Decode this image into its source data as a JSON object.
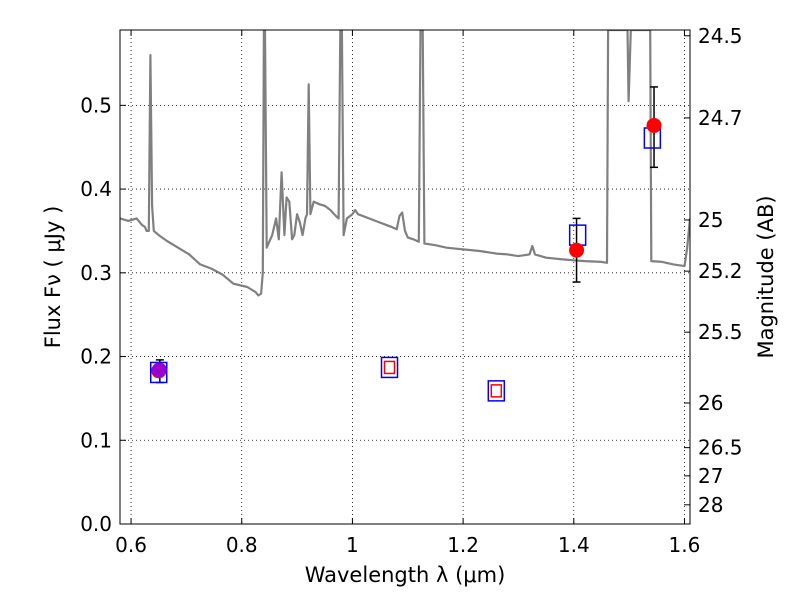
{
  "chart_data": {
    "type": "scatter",
    "xlabel": "Wavelength  λ (μm)",
    "ylabel": "Flux  Fν  ( μJy )",
    "y2label": "Magnitude (AB)",
    "xlim": [
      0.58,
      1.61
    ],
    "ylim": [
      0.0,
      0.59
    ],
    "grid": true,
    "xticks": [
      {
        "value": 0.6,
        "label": "0.6"
      },
      {
        "value": 0.8,
        "label": "0.8"
      },
      {
        "value": 1.0,
        "label": "1"
      },
      {
        "value": 1.2,
        "label": "1.2"
      },
      {
        "value": 1.4,
        "label": "1.4"
      },
      {
        "value": 1.6,
        "label": "1.6"
      }
    ],
    "yticks": [
      {
        "value": 0.0,
        "label": "0.0"
      },
      {
        "value": 0.1,
        "label": "0.1"
      },
      {
        "value": 0.2,
        "label": "0.2"
      },
      {
        "value": 0.3,
        "label": "0.3"
      },
      {
        "value": 0.4,
        "label": "0.4"
      },
      {
        "value": 0.5,
        "label": "0.5"
      }
    ],
    "y2ticks": [
      {
        "flux": 0.5831,
        "label": "24.5"
      },
      {
        "flux": 0.485,
        "label": "24.7"
      },
      {
        "flux": 0.3631,
        "label": "25"
      },
      {
        "flux": 0.302,
        "label": "25.2"
      },
      {
        "flux": 0.2291,
        "label": "25.5"
      },
      {
        "flux": 0.1445,
        "label": "26"
      },
      {
        "flux": 0.0912,
        "label": "26.5"
      },
      {
        "flux": 0.0575,
        "label": "27"
      },
      {
        "flux": 0.0229,
        "label": "28"
      }
    ],
    "series": [
      {
        "kind": "line",
        "color": "#808080",
        "points": [
          [
            0.58,
            0.365
          ],
          [
            0.595,
            0.362
          ],
          [
            0.61,
            0.365
          ],
          [
            0.62,
            0.357
          ],
          [
            0.625,
            0.355
          ],
          [
            0.628,
            0.35
          ],
          [
            0.632,
            0.35
          ],
          [
            0.635,
            0.56
          ],
          [
            0.638,
            0.38
          ],
          [
            0.641,
            0.35
          ],
          [
            0.65,
            0.345
          ],
          [
            0.665,
            0.338
          ],
          [
            0.685,
            0.33
          ],
          [
            0.705,
            0.322
          ],
          [
            0.725,
            0.31
          ],
          [
            0.745,
            0.305
          ],
          [
            0.765,
            0.298
          ],
          [
            0.785,
            0.287
          ],
          [
            0.81,
            0.283
          ],
          [
            0.825,
            0.277
          ],
          [
            0.83,
            0.273
          ],
          [
            0.835,
            0.275
          ],
          [
            0.838,
            0.3
          ],
          [
            0.84,
            0.59
          ],
          [
            0.842,
            0.59
          ],
          [
            0.845,
            0.33
          ],
          [
            0.855,
            0.345
          ],
          [
            0.862,
            0.365
          ],
          [
            0.867,
            0.34
          ],
          [
            0.872,
            0.42
          ],
          [
            0.877,
            0.345
          ],
          [
            0.881,
            0.39
          ],
          [
            0.886,
            0.385
          ],
          [
            0.891,
            0.34
          ],
          [
            0.895,
            0.345
          ],
          [
            0.9,
            0.37
          ],
          [
            0.905,
            0.36
          ],
          [
            0.91,
            0.345
          ],
          [
            0.915,
            0.365
          ],
          [
            0.918,
            0.37
          ],
          [
            0.921,
            0.525
          ],
          [
            0.924,
            0.37
          ],
          [
            0.93,
            0.385
          ],
          [
            0.94,
            0.382
          ],
          [
            0.95,
            0.38
          ],
          [
            0.96,
            0.375
          ],
          [
            0.97,
            0.368
          ],
          [
            0.975,
            0.365
          ],
          [
            0.978,
            0.59
          ],
          [
            0.981,
            0.59
          ],
          [
            0.984,
            0.345
          ],
          [
            0.99,
            0.365
          ],
          [
            1.0,
            0.37
          ],
          [
            1.005,
            0.375
          ],
          [
            1.01,
            0.37
          ],
          [
            1.03,
            0.365
          ],
          [
            1.05,
            0.36
          ],
          [
            1.07,
            0.355
          ],
          [
            1.08,
            0.352
          ],
          [
            1.085,
            0.368
          ],
          [
            1.09,
            0.372
          ],
          [
            1.095,
            0.35
          ],
          [
            1.1,
            0.342
          ],
          [
            1.11,
            0.34
          ],
          [
            1.12,
            0.337
          ],
          [
            1.123,
            0.59
          ],
          [
            1.127,
            0.59
          ],
          [
            1.13,
            0.335
          ],
          [
            1.15,
            0.333
          ],
          [
            1.17,
            0.33
          ],
          [
            1.2,
            0.328
          ],
          [
            1.23,
            0.326
          ],
          [
            1.26,
            0.323
          ],
          [
            1.28,
            0.322
          ],
          [
            1.3,
            0.32
          ],
          [
            1.32,
            0.322
          ],
          [
            1.325,
            0.332
          ],
          [
            1.33,
            0.322
          ],
          [
            1.35,
            0.318
          ],
          [
            1.38,
            0.316
          ],
          [
            1.4,
            0.315
          ],
          [
            1.42,
            0.314
          ],
          [
            1.45,
            0.313
          ],
          [
            1.46,
            0.312
          ],
          [
            1.462,
            0.59
          ],
          [
            1.49,
            0.59
          ],
          [
            1.497,
            0.59
          ],
          [
            1.499,
            0.505
          ],
          [
            1.503,
            0.59
          ],
          [
            1.53,
            0.59
          ],
          [
            1.538,
            0.59
          ],
          [
            1.54,
            0.314
          ],
          [
            1.56,
            0.313
          ],
          [
            1.58,
            0.31
          ],
          [
            1.6,
            0.308
          ],
          [
            1.605,
            0.33
          ],
          [
            1.61,
            0.365
          ]
        ]
      },
      {
        "kind": "filled-marker",
        "shape": "circle",
        "color": "#ff0000",
        "points": [
          [
            0.65,
            0.183
          ],
          [
            1.405,
            0.327
          ],
          [
            1.545,
            0.476
          ]
        ]
      },
      {
        "kind": "filled-marker",
        "shape": "circle",
        "color": "#9900cc",
        "points": [
          [
            0.651,
            0.184
          ]
        ]
      },
      {
        "kind": "open-marker",
        "shape": "square",
        "size": "large",
        "color": "#0000ff",
        "points": [
          [
            0.65,
            0.181
          ],
          [
            1.067,
            0.187
          ],
          [
            1.26,
            0.159
          ],
          [
            1.407,
            0.345
          ],
          [
            1.542,
            0.461
          ]
        ]
      },
      {
        "kind": "open-marker",
        "shape": "square",
        "size": "small",
        "color": "#ff0000",
        "points": [
          [
            1.067,
            0.187
          ],
          [
            1.26,
            0.159
          ]
        ]
      },
      {
        "kind": "errorbar",
        "color": "#000000",
        "points": [
          {
            "x": 0.652,
            "y": 0.182,
            "lo": 0.169,
            "hi": 0.196
          },
          {
            "x": 1.405,
            "y": 0.327,
            "lo": 0.289,
            "hi": 0.365
          },
          {
            "x": 1.545,
            "y": 0.476,
            "lo": 0.426,
            "hi": 0.522
          }
        ]
      }
    ]
  }
}
